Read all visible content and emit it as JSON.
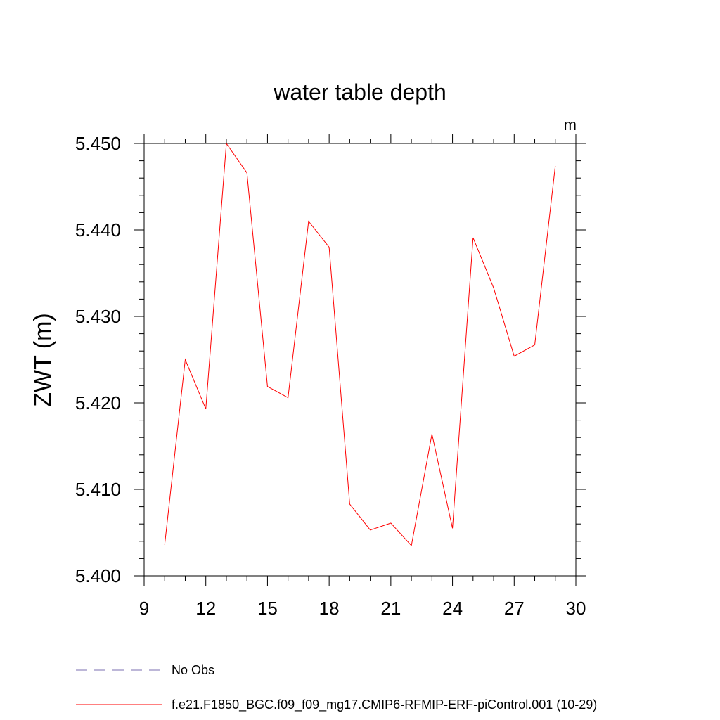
{
  "chart_data": {
    "type": "line",
    "title": "water table depth",
    "units_label": "m",
    "ylabel": "ZWT  (m)",
    "xlabel": "",
    "xlim": [
      9,
      30
    ],
    "ylim": [
      5.4,
      5.45
    ],
    "xticks": [
      9,
      12,
      15,
      18,
      21,
      24,
      27,
      30
    ],
    "yticks": [
      5.4,
      5.41,
      5.42,
      5.43,
      5.44,
      5.45
    ],
    "ytick_labels": [
      "5.400",
      "5.410",
      "5.420",
      "5.430",
      "5.440",
      "5.450"
    ],
    "grid": false,
    "legend": {
      "placement": "bottom",
      "entries": [
        {
          "label": "No Obs",
          "color": "#7b6fb0",
          "style": "dashed"
        },
        {
          "label": "f.e21.F1850_BGC.f09_f09_mg17.CMIP6-RFMIP-ERF-piControl.001 (10-29)",
          "color": "#ff0000",
          "style": "solid"
        }
      ]
    },
    "series": [
      {
        "name": "f.e21.F1850_BGC.f09_f09_mg17.CMIP6-RFMIP-ERF-piControl.001 (10-29)",
        "color": "#ff0000",
        "x": [
          10,
          11,
          12,
          13,
          14,
          15,
          16,
          17,
          18,
          19,
          20,
          21,
          22,
          23,
          24,
          25,
          26,
          27,
          28,
          29
        ],
        "y": [
          5.4036,
          5.425,
          5.4193,
          5.45,
          5.4466,
          5.4219,
          5.4206,
          5.441,
          5.438,
          5.4083,
          5.4053,
          5.4061,
          5.4035,
          5.4164,
          5.4055,
          5.4391,
          5.4333,
          5.4254,
          5.4267,
          5.4474
        ]
      }
    ]
  }
}
